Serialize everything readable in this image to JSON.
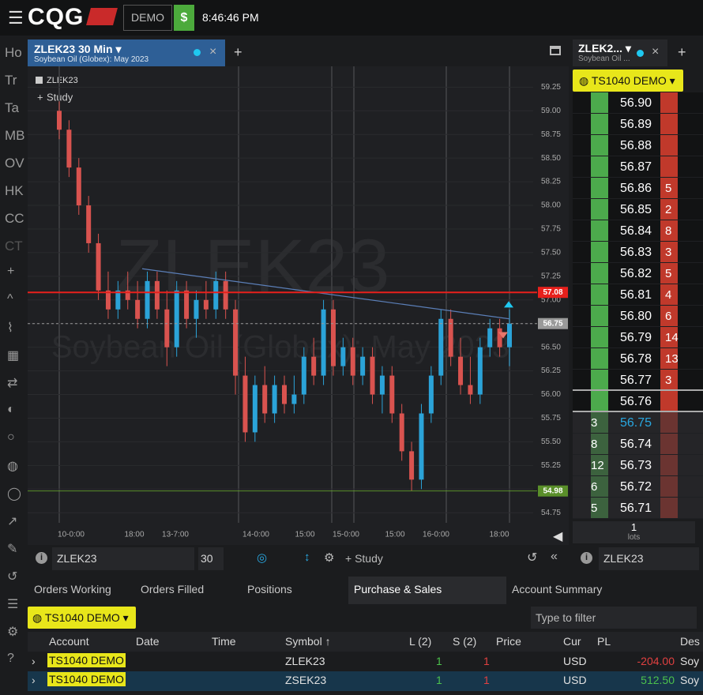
{
  "header": {
    "logo": "CQG",
    "mode": "DEMO",
    "dollar": "$",
    "time": "8:46:46 PM"
  },
  "sidebar": [
    "Ho",
    "Tr",
    "Ta",
    "MB",
    "OV",
    "HK",
    "CC",
    "CT"
  ],
  "chart_tab": {
    "title": "ZLEK23 30 Min",
    "subtitle": "Soybean Oil (Globex): May 2023"
  },
  "chart_data": {
    "type": "candlestick",
    "symbol": "ZLEK23",
    "study": "Study",
    "watermark": "ZLEK23",
    "watermark_sub": "Soybean Oil (Globex): May 2023",
    "x_labels": [
      "10-0:00",
      "18:00",
      "13-7:00",
      "14-0:00",
      "15:00",
      "15-0:00",
      "15:00",
      "16-0:00",
      "18:00"
    ],
    "ylim": [
      54.66,
      59.42
    ],
    "yticks": [
      59.25,
      {
        "value": 59,
        "label": "59.00"
      },
      58.75,
      {
        "value": 58.5,
        "label": "58.50"
      },
      58.25,
      {
        "value": 58,
        "label": "58.00"
      },
      57.75,
      {
        "value": 57.5,
        "label": "57.50"
      },
      57.25,
      {
        "value": 57,
        "label": "57.00"
      },
      56.75,
      {
        "value": 56.5,
        "label": "56.50"
      },
      56.25,
      {
        "value": 56,
        "label": "56.00"
      },
      55.75,
      {
        "value": 55.5,
        "label": "55.50"
      },
      55.25,
      {
        "value": 55,
        "label": "55.00"
      },
      54.75
    ],
    "levels": [
      {
        "value": 57.08,
        "color": "#e8201c"
      },
      {
        "value": 56.75,
        "color": "#9a9a9a"
      },
      {
        "value": 54.98,
        "color": "#5a8f2a"
      }
    ],
    "trendline": [
      57.33,
      56.8
    ],
    "up_color": "#2ba3d8",
    "down_color": "#d9534f",
    "ohlc": [
      [
        59.0,
        59.1,
        58.7,
        58.8
      ],
      [
        58.8,
        58.9,
        58.3,
        58.4
      ],
      [
        58.4,
        58.5,
        57.9,
        58.0
      ],
      [
        58.0,
        58.1,
        57.5,
        57.6
      ],
      [
        57.6,
        57.7,
        57.0,
        57.1
      ],
      [
        57.1,
        57.3,
        56.8,
        56.9
      ],
      [
        56.9,
        57.2,
        56.8,
        57.1
      ],
      [
        57.1,
        57.3,
        56.9,
        57.0
      ],
      [
        57.0,
        57.2,
        56.7,
        56.8
      ],
      [
        56.8,
        57.3,
        56.7,
        57.2
      ],
      [
        57.2,
        57.3,
        56.8,
        56.9
      ],
      [
        56.9,
        57.1,
        56.3,
        56.5
      ],
      [
        56.5,
        57.2,
        56.4,
        57.1
      ],
      [
        57.1,
        57.2,
        56.7,
        56.8
      ],
      [
        56.8,
        57.1,
        56.6,
        57.0
      ],
      [
        57.0,
        57.2,
        56.8,
        56.9
      ],
      [
        56.9,
        57.3,
        56.8,
        57.2
      ],
      [
        57.2,
        57.3,
        56.8,
        56.9
      ],
      [
        56.9,
        57.0,
        56.0,
        56.2
      ],
      [
        56.2,
        56.4,
        55.5,
        55.6
      ],
      [
        55.6,
        56.2,
        55.5,
        56.1
      ],
      [
        56.1,
        56.3,
        55.7,
        55.8
      ],
      [
        55.8,
        56.2,
        55.7,
        56.1
      ],
      [
        56.1,
        56.2,
        55.8,
        55.9
      ],
      [
        55.9,
        56.2,
        55.8,
        56.0
      ],
      [
        56.0,
        56.5,
        55.9,
        56.4
      ],
      [
        56.4,
        56.6,
        56.1,
        56.2
      ],
      [
        56.2,
        57.0,
        56.1,
        56.9
      ],
      [
        56.9,
        57.0,
        56.2,
        56.3
      ],
      [
        56.3,
        56.6,
        56.2,
        56.5
      ],
      [
        56.5,
        56.6,
        56.1,
        56.2
      ],
      [
        56.2,
        56.5,
        56.1,
        56.4
      ],
      [
        56.4,
        56.5,
        55.9,
        56.0
      ],
      [
        56.0,
        56.3,
        55.8,
        56.2
      ],
      [
        56.2,
        56.3,
        55.7,
        55.8
      ],
      [
        55.8,
        55.9,
        55.3,
        55.4
      ],
      [
        55.4,
        55.5,
        54.98,
        55.1
      ],
      [
        55.1,
        55.9,
        55.0,
        55.8
      ],
      [
        55.8,
        56.3,
        55.7,
        56.2
      ],
      [
        56.2,
        56.9,
        56.1,
        56.8
      ],
      [
        56.8,
        56.9,
        56.3,
        56.4
      ],
      [
        56.4,
        56.6,
        56.0,
        56.1
      ],
      [
        56.1,
        56.4,
        55.9,
        56.0
      ],
      [
        56.0,
        56.6,
        55.9,
        56.5
      ],
      [
        56.5,
        56.8,
        56.4,
        56.7
      ],
      [
        56.7,
        56.8,
        56.4,
        56.5
      ],
      [
        56.5,
        56.9,
        56.3,
        56.75
      ]
    ]
  },
  "toolbar": {
    "symbol": "ZLEK23",
    "interval": "30",
    "study": "Study"
  },
  "dom": {
    "tab": "ZLEK2...",
    "subtitle": "Soybean Oil ...",
    "account": "TS1040 DEMO",
    "lots": "1",
    "lots_label": "lots",
    "symbol": "ZLEK23",
    "rows": [
      [
        "56.90",
        null,
        null
      ],
      [
        "56.89",
        null,
        null
      ],
      [
        "56.88",
        null,
        null
      ],
      [
        "56.87",
        null,
        null
      ],
      [
        "56.86",
        null,
        "5"
      ],
      [
        "56.85",
        null,
        "2"
      ],
      [
        "56.84",
        null,
        "8"
      ],
      [
        "56.83",
        null,
        "3"
      ],
      [
        "56.82",
        null,
        "5"
      ],
      [
        "56.81",
        null,
        "4"
      ],
      [
        "56.80",
        null,
        "6"
      ],
      [
        "56.79",
        null,
        "14"
      ],
      [
        "56.78",
        null,
        "13"
      ],
      [
        "56.77",
        null,
        "3"
      ],
      [
        "56.76",
        null,
        null
      ],
      [
        "56.75",
        "3",
        null
      ],
      [
        "56.74",
        "8",
        null
      ],
      [
        "56.73",
        "12",
        null
      ],
      [
        "56.72",
        "6",
        null
      ],
      [
        "56.71",
        "5",
        null
      ]
    ]
  },
  "bottom": {
    "tabs": [
      "Orders Working",
      "Orders Filled",
      "Positions",
      "Purchase & Sales",
      "Account Summary"
    ],
    "account": "TS1040 DEMO",
    "filter": "Type to filter",
    "columns": [
      "Account",
      "Date",
      "Time",
      "Symbol ↑",
      "L (2)",
      "S (2)",
      "Price",
      "Cur",
      "PL",
      "Des"
    ],
    "rows": [
      [
        "TS1040 DEMO",
        "",
        "",
        "ZLEK23",
        "1",
        "1",
        "",
        "USD",
        "-204.00",
        "Soy"
      ],
      [
        "TS1040 DEMO",
        "",
        "",
        "ZSEK23",
        "1",
        "1",
        "",
        "USD",
        "512.50",
        "Soy"
      ]
    ]
  }
}
